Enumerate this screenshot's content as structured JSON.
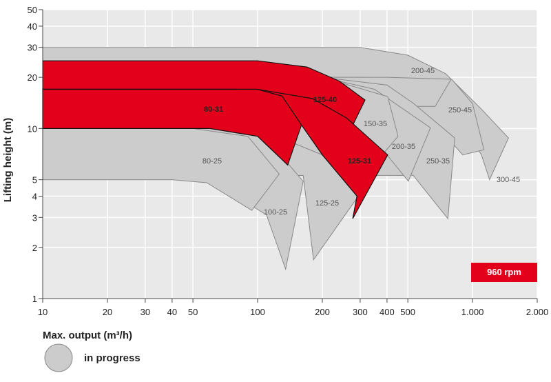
{
  "chart_data": {
    "type": "region",
    "xlabel": "Max. output (m³/h)",
    "ylabel": "Lifting height (m)",
    "xscale": "log",
    "yscale": "log",
    "grid": true,
    "xlim": [
      10,
      2000
    ],
    "ylim": [
      1,
      50
    ],
    "xticks": [
      10,
      20,
      30,
      40,
      50,
      100,
      200,
      300,
      400,
      500,
      {
        "value": 1000,
        "label": "1.000"
      },
      {
        "value": 2000,
        "label": "2.000"
      }
    ],
    "yticks": [
      1,
      2,
      3,
      4,
      5,
      10,
      20,
      30,
      40,
      50
    ],
    "badge": {
      "label": "960 rpm",
      "color": "#e2001a"
    },
    "legend": {
      "label": "in progress",
      "color": "#cccccc"
    },
    "series": [
      {
        "name": "300-45",
        "color": "#cccccc",
        "x": [
          10,
          300,
          500,
          750,
          1100,
          1470,
          1200,
          1100,
          900,
          700,
          10
        ],
        "y": [
          30,
          30,
          27,
          21,
          13,
          8.8,
          5,
          7,
          10.5,
          13,
          13
        ]
      },
      {
        "name": "250-45",
        "color": "#cccccc",
        "x": [
          10,
          300,
          600,
          800,
          1000,
          1130,
          900,
          700,
          10
        ],
        "y": [
          20,
          20,
          19.5,
          19.5,
          14,
          7.5,
          7,
          10,
          10
        ]
      },
      {
        "name": "200-45",
        "color": "#cccccc",
        "x": [
          10,
          400,
          795,
          670,
          10
        ],
        "y": [
          20,
          20,
          19.5,
          13.5,
          13.5
        ]
      },
      {
        "name": "250-35",
        "color": "#cccccc",
        "x": [
          10,
          200,
          400,
          530,
          826,
          768,
          530,
          10
        ],
        "y": [
          20,
          20,
          18,
          14.1,
          8.8,
          2.95,
          5.3,
          5.3
        ]
      },
      {
        "name": "200-35",
        "color": "#cccccc",
        "x": [
          10,
          200,
          350,
          637,
          503,
          400,
          10
        ],
        "y": [
          20,
          20,
          17,
          10.1,
          4.9,
          7,
          7
        ]
      },
      {
        "name": "150-35",
        "color": "#cccccc",
        "x": [
          10,
          200,
          403,
          450,
          380,
          10
        ],
        "y": [
          20,
          20,
          15.4,
          9,
          7,
          7
        ]
      },
      {
        "name": "125-25",
        "color": "#cccccc",
        "x": [
          10,
          100,
          200,
          294,
          182,
          163,
          10
        ],
        "y": [
          10,
          10,
          7,
          4,
          1.69,
          5.3,
          5.3
        ]
      },
      {
        "name": "100-25",
        "color": "#cccccc",
        "x": [
          10,
          100,
          163,
          135,
          110,
          60,
          10
        ],
        "y": [
          10,
          10,
          4.9,
          1.49,
          3.1,
          5,
          5
        ]
      },
      {
        "name": "80-25",
        "color": "#cccccc",
        "x": [
          10,
          50,
          90,
          126,
          94,
          58,
          40,
          10
        ],
        "y": [
          10,
          10,
          9,
          5.4,
          3.3,
          4.8,
          5,
          5
        ]
      },
      {
        "name": "125-40",
        "color": "#e2001a",
        "x": [
          10,
          100,
          170,
          240,
          316,
          268,
          200,
          120,
          80,
          10
        ],
        "y": [
          25,
          25,
          23,
          19,
          14.7,
          9.6,
          12.5,
          15.5,
          17,
          17
        ]
      },
      {
        "name": "125-31",
        "color": "#e2001a",
        "x": [
          10,
          100,
          180,
          260,
          403,
          277,
          290,
          200,
          160,
          10
        ],
        "y": [
          17,
          17,
          15,
          11.5,
          7,
          2.95,
          4,
          7,
          10.5,
          10
        ]
      },
      {
        "name": "80-31",
        "color": "#e2001a",
        "x": [
          10,
          100,
          130,
          160,
          138,
          100,
          60,
          10
        ],
        "y": [
          17,
          17,
          15.5,
          10.5,
          6.1,
          9,
          10,
          10
        ]
      }
    ]
  }
}
